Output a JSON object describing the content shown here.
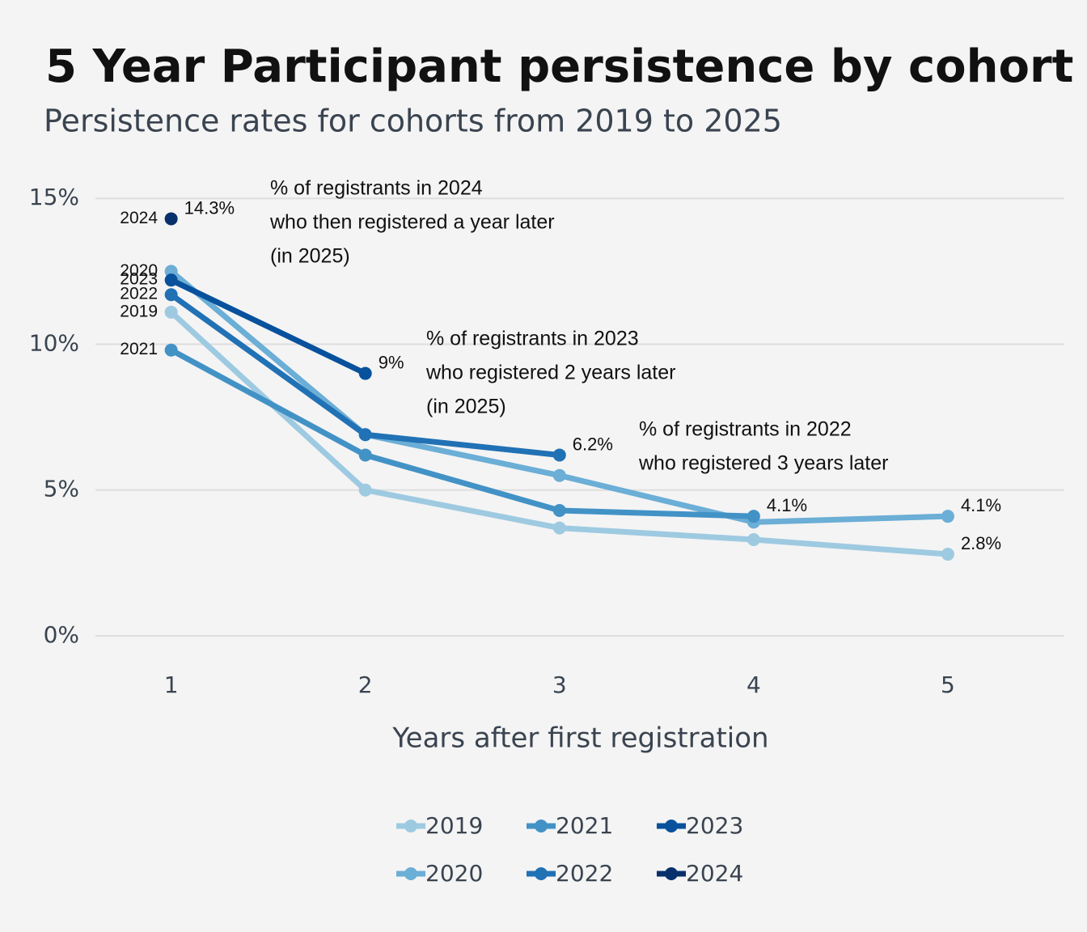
{
  "chart_data": {
    "type": "line",
    "title": "5 Year Participant persistence by cohort",
    "subtitle": "Persistence rates for cohorts from 2019 to 2025",
    "x_label": "Years after first registration",
    "x": [
      1,
      2,
      3,
      4,
      5
    ],
    "xlim": [
      0.61,
      5.6
    ],
    "xticks": [
      1,
      2,
      3,
      4,
      5
    ],
    "ylim": [
      -0.5,
      15.7
    ],
    "yticks": [
      {
        "value": 0,
        "label": "0%"
      },
      {
        "value": 5,
        "label": "5%"
      },
      {
        "value": 10,
        "label": "10%"
      },
      {
        "value": 15,
        "label": "15%"
      }
    ],
    "grid": true,
    "legend": "bottom",
    "series": [
      {
        "name": "2019",
        "color": "#9ecae1",
        "values": [
          11.1,
          5.0,
          3.7,
          3.3,
          2.8
        ],
        "value_labels": [
          null,
          null,
          null,
          null,
          "2.8%"
        ]
      },
      {
        "name": "2020",
        "color": "#6baed6",
        "values": [
          12.5,
          6.9,
          5.5,
          3.9,
          4.1
        ],
        "value_labels": [
          null,
          null,
          null,
          null,
          "4.1%"
        ]
      },
      {
        "name": "2021",
        "color": "#4292c6",
        "values": [
          9.8,
          6.2,
          4.3,
          4.1,
          null
        ],
        "value_labels": [
          null,
          null,
          null,
          "4.1%",
          null
        ]
      },
      {
        "name": "2022",
        "color": "#2171b5",
        "values": [
          11.7,
          6.9,
          6.2,
          null,
          null
        ],
        "value_labels": [
          null,
          null,
          "6.2%",
          null,
          null
        ]
      },
      {
        "name": "2023",
        "color": "#08519c",
        "values": [
          12.2,
          9,
          null,
          null,
          null
        ],
        "value_labels": [
          null,
          "9%",
          null,
          null,
          null
        ]
      },
      {
        "name": "2024",
        "color": "#08306b",
        "values": [
          14.3,
          null,
          null,
          null,
          null
        ],
        "value_labels": [
          "14.3%",
          null,
          null,
          null,
          null
        ]
      }
    ],
    "annotations": [
      {
        "lines": [
          "% of registrants in 2024",
          "who then registered a year later",
          "(in 2025)"
        ]
      },
      {
        "lines": [
          "% of registrants in 2023",
          "who registered 2 years later",
          "(in 2025)"
        ]
      },
      {
        "lines": [
          "% of registrants in 2022",
          "who registered 3 years later"
        ]
      }
    ]
  }
}
